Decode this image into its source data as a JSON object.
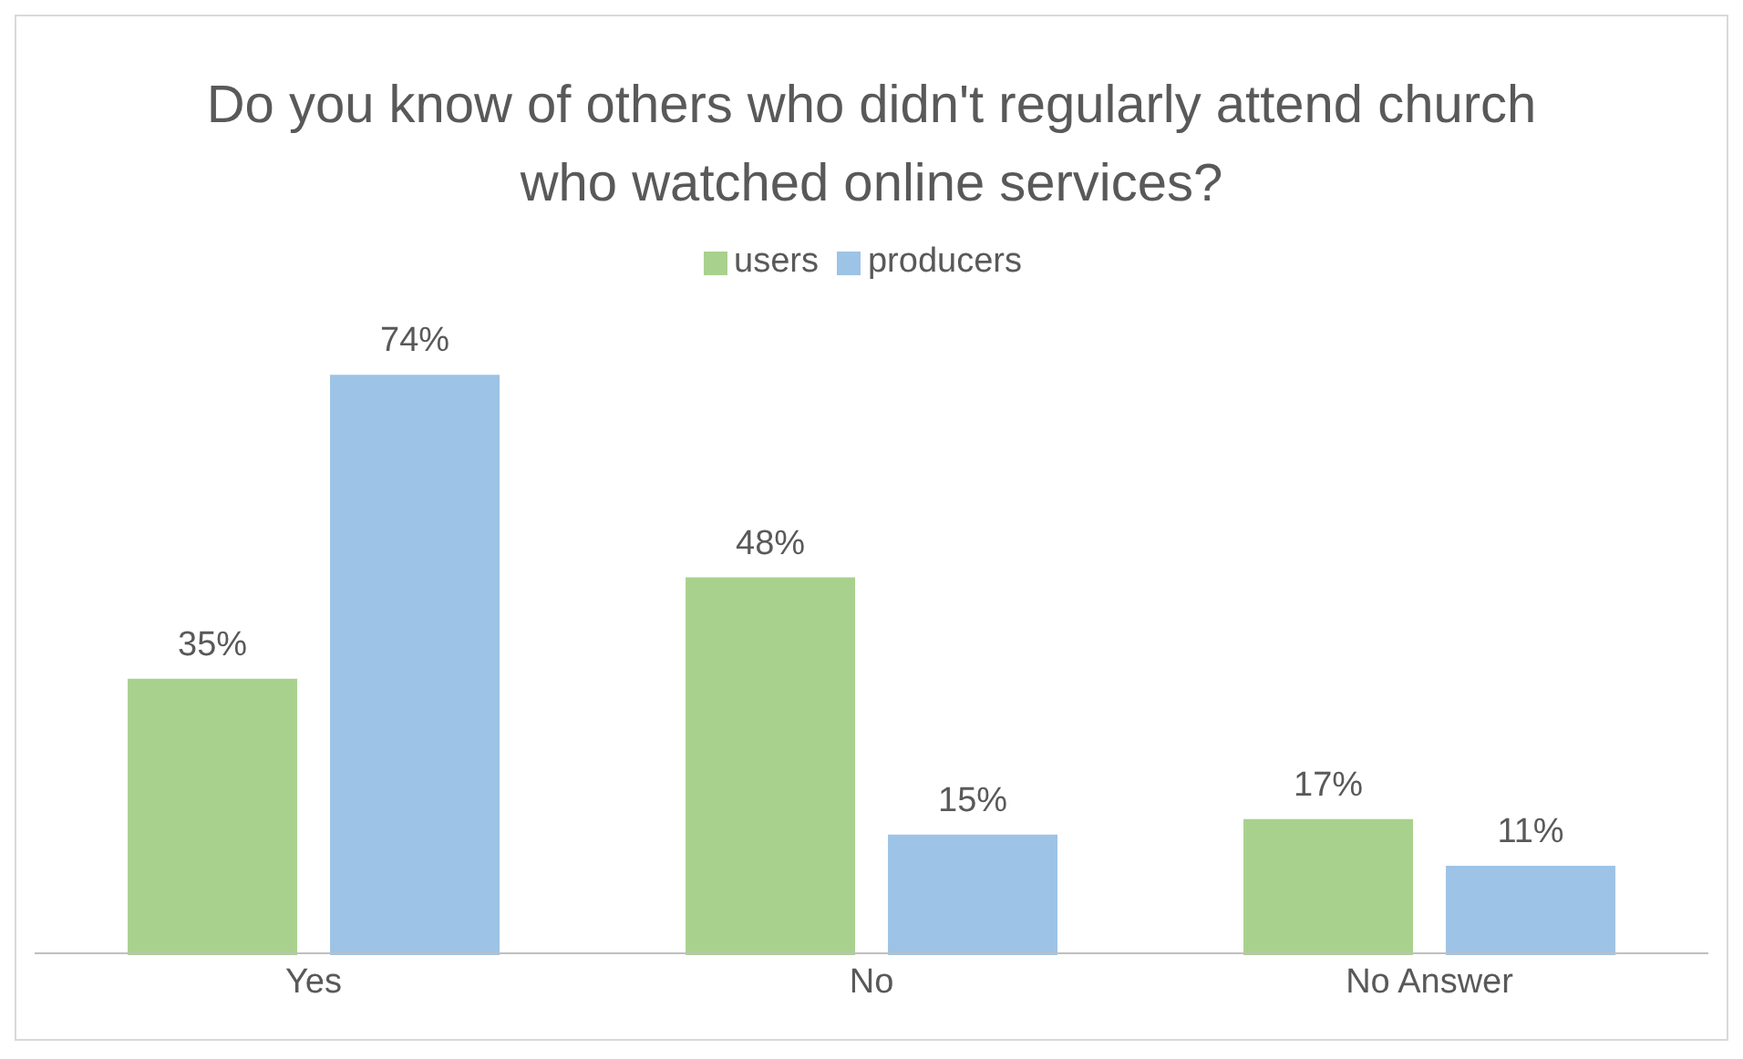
{
  "chart_data": {
    "type": "bar",
    "title": "Do you know of others who didn't regularly attend church who watched online services?",
    "categories": [
      "Yes",
      "No",
      "No Answer"
    ],
    "legend": "top",
    "grid": false,
    "series": [
      {
        "name": "users",
        "color": "#a9d18e",
        "values": [
          35,
          48,
          17
        ],
        "value_labels": [
          "35%",
          "48%",
          "17%"
        ]
      },
      {
        "name": "producers",
        "color": "#9dc3e6",
        "values": [
          74,
          15,
          11
        ],
        "value_labels": [
          "74%",
          "15%",
          "11%"
        ]
      }
    ]
  }
}
